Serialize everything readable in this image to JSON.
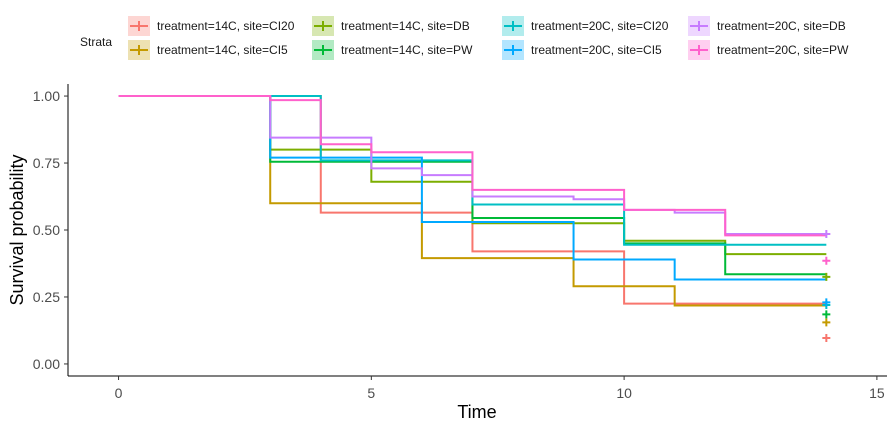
{
  "chart_data": {
    "type": "line",
    "title": "",
    "xlabel": "Time",
    "ylabel": "Survival probability",
    "xlim": [
      -1,
      15.2
    ],
    "ylim": [
      -0.045,
      1.045
    ],
    "x_ticks": [
      0,
      5,
      10,
      15
    ],
    "x_tick_labels": [
      "0",
      "5",
      "10",
      "15"
    ],
    "y_ticks": [
      0,
      0.25,
      0.5,
      0.75,
      1
    ],
    "y_tick_labels": [
      "0.00",
      "0.25",
      "0.50",
      "0.75",
      "1.00"
    ],
    "grid": false,
    "legend": {
      "position": "top",
      "title": "Strata",
      "columns": 4
    },
    "series": [
      {
        "name": "treatment=14C, site=CI20",
        "color": "#F8766D",
        "steps": [
          [
            0,
            1.0
          ],
          [
            4,
            0.565
          ],
          [
            7,
            0.42
          ],
          [
            10,
            0.225
          ]
        ],
        "end": 14,
        "censor": [
          [
            14,
            0.097
          ]
        ]
      },
      {
        "name": "treatment=14C, site=CI5",
        "color": "#C49A00",
        "steps": [
          [
            0,
            1.0
          ],
          [
            3,
            0.6
          ],
          [
            6,
            0.395
          ],
          [
            9,
            0.29
          ],
          [
            11,
            0.218
          ]
        ],
        "end": 14,
        "censor": [
          [
            14,
            0.155
          ]
        ]
      },
      {
        "name": "treatment=14C, site=DB",
        "color": "#7CAE00",
        "steps": [
          [
            0,
            1.0
          ],
          [
            3,
            0.8
          ],
          [
            5,
            0.68
          ],
          [
            7,
            0.525
          ],
          [
            10,
            0.46
          ],
          [
            12,
            0.41
          ]
        ],
        "end": 14,
        "censor": [
          [
            14,
            0.325
          ]
        ]
      },
      {
        "name": "treatment=14C, site=PW",
        "color": "#00BA38",
        "steps": [
          [
            0,
            1.0
          ],
          [
            3,
            0.755
          ],
          [
            7,
            0.545
          ],
          [
            10,
            0.45
          ],
          [
            12,
            0.335
          ]
        ],
        "end": 14,
        "censor": [
          [
            14,
            0.185
          ]
        ]
      },
      {
        "name": "treatment=20C, site=CI20",
        "color": "#00BFC4",
        "steps": [
          [
            0,
            1.0
          ],
          [
            4,
            0.76
          ],
          [
            7,
            0.595
          ],
          [
            10,
            0.445
          ]
        ],
        "end": 14,
        "censor": [
          [
            14,
            0.22
          ]
        ]
      },
      {
        "name": "treatment=20C, site=CI5",
        "color": "#00A9FF",
        "steps": [
          [
            0,
            1.0
          ],
          [
            3,
            0.77
          ],
          [
            6,
            0.53
          ],
          [
            9,
            0.39
          ],
          [
            11,
            0.315
          ]
        ],
        "end": 14,
        "censor": [
          [
            14,
            0.23
          ]
        ]
      },
      {
        "name": "treatment=20C, site=DB",
        "color": "#C77CFF",
        "steps": [
          [
            0,
            1.0
          ],
          [
            3,
            0.845
          ],
          [
            5,
            0.73
          ],
          [
            6,
            0.705
          ],
          [
            7,
            0.625
          ],
          [
            9,
            0.615
          ],
          [
            10,
            0.575
          ],
          [
            11,
            0.565
          ],
          [
            12,
            0.485
          ]
        ],
        "end": 14,
        "censor": [
          [
            14,
            0.485
          ]
        ]
      },
      {
        "name": "treatment=20C, site=PW",
        "color": "#FF61CC",
        "steps": [
          [
            0,
            1.0
          ],
          [
            3,
            0.985
          ],
          [
            4,
            0.82
          ],
          [
            5,
            0.79
          ],
          [
            7,
            0.65
          ],
          [
            10,
            0.575
          ],
          [
            12,
            0.48
          ]
        ],
        "end": 14,
        "censor": [
          [
            14,
            0.385
          ]
        ]
      }
    ]
  }
}
